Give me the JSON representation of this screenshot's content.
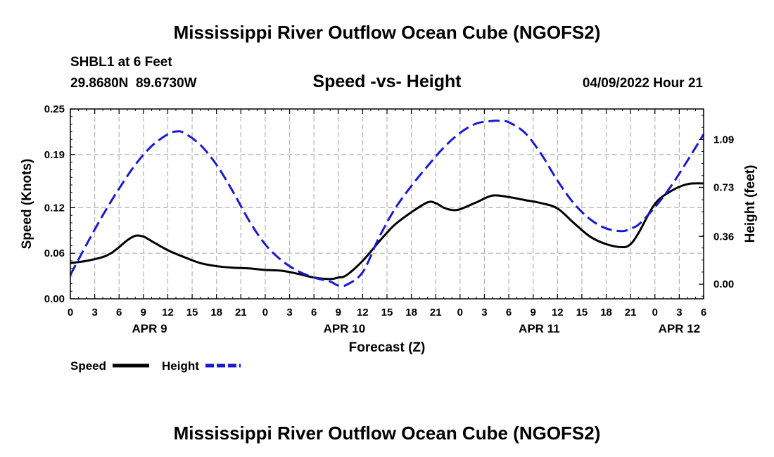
{
  "page": {
    "title": "Mississippi River Outflow Ocean Cube (NGOFS2)",
    "station": "SHBL1 at 6 Feet",
    "coords": "29.8680N  89.6730W",
    "subtitle": "Speed -vs- Height",
    "date": "04/09/2022 Hour 21",
    "footer_title": "Mississippi River Outflow Ocean Cube (NGOFS2)"
  },
  "legend": {
    "speed_label": "Speed",
    "height_label": "Height"
  },
  "colors": {
    "speed": "#000000",
    "height": "#1a1acd",
    "grid": "#b4b4b4"
  },
  "chart_data": {
    "type": "line",
    "title": "Speed -vs- Height",
    "xlabel": "Forecast (Z)",
    "ylabel": "Speed (Knots)",
    "y2label": "Height (feet)",
    "xlim": [
      0,
      78
    ],
    "ylim": [
      0,
      0.25
    ],
    "y2lim": [
      -0.11,
      1.32
    ],
    "x_ticks": [
      0,
      3,
      6,
      9,
      12,
      15,
      18,
      21,
      24,
      27,
      30,
      33,
      36,
      39,
      42,
      45,
      48,
      51,
      54,
      57,
      60,
      63,
      66,
      69,
      72,
      75,
      78
    ],
    "x_tick_labels": [
      "0",
      "3",
      "6",
      "9",
      "12",
      "15",
      "18",
      "21",
      "0",
      "3",
      "6",
      "9",
      "12",
      "15",
      "18",
      "21",
      "0",
      "3",
      "6",
      "9",
      "12",
      "15",
      "18",
      "21",
      "0",
      "3",
      "6"
    ],
    "y_ticks": [
      0.0,
      0.06,
      0.12,
      0.19,
      0.25
    ],
    "y_tick_labels": [
      "0.00",
      "0.06",
      "0.12",
      "0.19",
      "0.25"
    ],
    "y2_ticks": [
      0.0,
      0.36,
      0.73,
      1.09
    ],
    "y2_tick_labels": [
      "0.00",
      "0.36",
      "0.73",
      "1.09"
    ],
    "day_labels": [
      {
        "x": 9.75,
        "label": "APR 9"
      },
      {
        "x": 33.75,
        "label": "APR 10"
      },
      {
        "x": 57.75,
        "label": "APR 11"
      },
      {
        "x": 75,
        "label": "APR 12"
      }
    ],
    "series": [
      {
        "name": "Speed",
        "axis": "left",
        "style": "solid",
        "x": [
          0,
          2,
          4,
          5,
          6,
          7,
          8,
          9,
          10,
          12,
          14,
          16,
          18,
          20,
          22,
          24,
          26,
          28,
          30,
          32,
          33,
          34,
          36,
          38,
          39,
          40,
          42,
          44,
          45,
          46,
          47,
          48,
          50,
          52,
          54,
          56,
          58,
          60,
          62,
          64,
          66,
          68,
          69,
          70,
          72,
          74,
          76,
          78
        ],
        "values": [
          0.047,
          0.05,
          0.055,
          0.06,
          0.068,
          0.077,
          0.083,
          0.082,
          0.076,
          0.064,
          0.055,
          0.047,
          0.043,
          0.041,
          0.04,
          0.038,
          0.037,
          0.033,
          0.028,
          0.026,
          0.028,
          0.031,
          0.05,
          0.075,
          0.087,
          0.098,
          0.114,
          0.127,
          0.126,
          0.12,
          0.117,
          0.118,
          0.127,
          0.136,
          0.134,
          0.13,
          0.126,
          0.119,
          0.1,
          0.082,
          0.072,
          0.068,
          0.072,
          0.087,
          0.125,
          0.142,
          0.151,
          0.152
        ]
      },
      {
        "name": "Height",
        "axis": "right",
        "style": "dashed",
        "x": [
          0,
          2,
          4,
          6,
          8,
          10,
          12,
          13,
          14,
          16,
          18,
          20,
          22,
          24,
          26,
          28,
          30,
          32,
          33,
          34,
          36,
          38,
          40,
          42,
          44,
          46,
          48,
          50,
          52,
          53,
          54,
          56,
          58,
          60,
          62,
          64,
          66,
          68,
          69,
          70,
          72,
          74,
          76,
          78
        ],
        "values": [
          0.07,
          0.3,
          0.52,
          0.72,
          0.9,
          1.04,
          1.13,
          1.15,
          1.14,
          1.05,
          0.9,
          0.7,
          0.48,
          0.3,
          0.18,
          0.1,
          0.05,
          0.02,
          -0.01,
          -0.005,
          0.09,
          0.35,
          0.57,
          0.74,
          0.89,
          1.03,
          1.14,
          1.21,
          1.23,
          1.23,
          1.22,
          1.14,
          0.98,
          0.78,
          0.61,
          0.49,
          0.42,
          0.4,
          0.42,
          0.45,
          0.58,
          0.74,
          0.93,
          1.13
        ]
      }
    ]
  }
}
